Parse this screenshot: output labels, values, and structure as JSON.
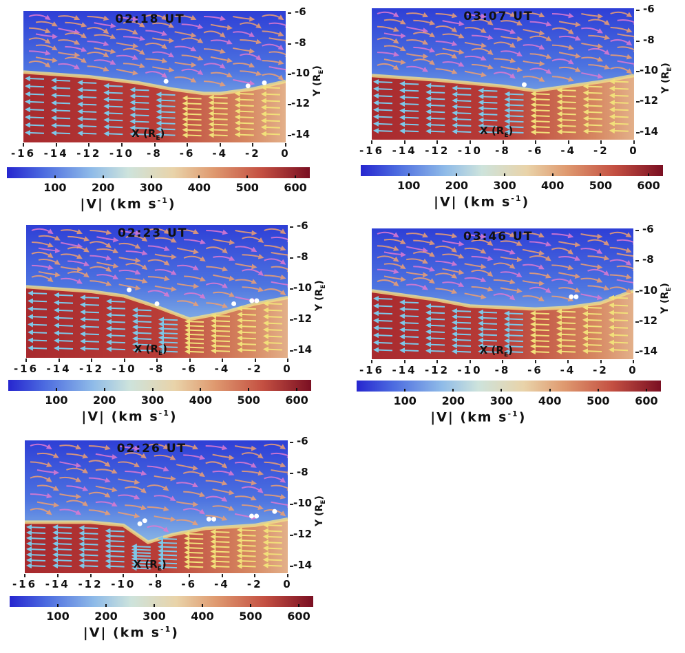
{
  "figure": {
    "x_axis_label": "X (R",
    "y_axis_label": "Y (R",
    "axis_unit_subscript": "E",
    "colorbar_label": "|V| (km s",
    "colorbar_label_exp": "-1",
    "colorbar_label_close": ")"
  },
  "chart_data": {
    "type": "heatmap",
    "description_kind": "velocity magnitude with streamlines",
    "xlim": [
      -16,
      0
    ],
    "ylim": [
      -14.5,
      -5.9
    ],
    "x_ticks": [
      "-16",
      "-14",
      "-12",
      "-10",
      "-8",
      "-6",
      "-4",
      "-2",
      "0"
    ],
    "x_tick_values": [
      -16,
      -14,
      -12,
      -10,
      -8,
      -6,
      -4,
      -2,
      0
    ],
    "y_ticks": [
      "-6",
      "-8",
      "-10",
      "-12",
      "-14"
    ],
    "y_tick_values": [
      -6,
      -8,
      -10,
      -12,
      -14
    ],
    "colorbar": {
      "range": [
        0,
        630
      ],
      "ticks": [
        "100",
        "200",
        "300",
        "400",
        "500",
        "600"
      ],
      "tick_values": [
        100,
        200,
        300,
        400,
        500,
        600
      ],
      "colors": [
        "#2626cf",
        "#8fbbe8",
        "#e9d3a9",
        "#c45042",
        "#7a0f22"
      ]
    },
    "panels": [
      {
        "title": "02:18 UT",
        "boundary": [
          [
            -16,
            -9.9
          ],
          [
            -12,
            -10.2
          ],
          [
            -9,
            -10.6
          ],
          [
            -7,
            -11.0
          ],
          [
            -5,
            -11.3
          ],
          [
            -4,
            -11.3
          ],
          [
            -2,
            -11.0
          ],
          [
            0,
            -10.5
          ]
        ],
        "spacecraft": [
          [
            -7.3,
            -10.5
          ],
          [
            -2.3,
            -10.8
          ],
          [
            -1.3,
            -10.6
          ]
        ]
      },
      {
        "title": "03:07 UT",
        "boundary": [
          [
            -16,
            -10.3
          ],
          [
            -12,
            -10.6
          ],
          [
            -8,
            -11.0
          ],
          [
            -6,
            -11.3
          ],
          [
            -4,
            -11.0
          ],
          [
            -2,
            -10.7
          ],
          [
            0,
            -10.3
          ]
        ],
        "spacecraft": [
          [
            -6.7,
            -10.9
          ]
        ]
      },
      {
        "title": "02:23 UT",
        "boundary": [
          [
            -16,
            -9.9
          ],
          [
            -12,
            -10.2
          ],
          [
            -10,
            -10.5
          ],
          [
            -8,
            -11.2
          ],
          [
            -6,
            -12.0
          ],
          [
            -4,
            -11.6
          ],
          [
            -2,
            -11.0
          ],
          [
            0,
            -10.6
          ]
        ],
        "spacecraft": [
          [
            -9.7,
            -10.1
          ],
          [
            -8.0,
            -11.0
          ],
          [
            -3.3,
            -11.0
          ],
          [
            -2.2,
            -10.8
          ],
          [
            -1.9,
            -10.8
          ]
        ]
      },
      {
        "title": "03:46 UT",
        "boundary": [
          [
            -16,
            -10.0
          ],
          [
            -12,
            -10.6
          ],
          [
            -10,
            -11.0
          ],
          [
            -6,
            -11.2
          ],
          [
            -4,
            -11.1
          ],
          [
            -2,
            -10.8
          ],
          [
            0,
            -10.0
          ]
        ],
        "spacecraft": [
          [
            -3.8,
            -10.4
          ],
          [
            -3.5,
            -10.4
          ]
        ]
      },
      {
        "title": "02:26 UT",
        "boundary": [
          [
            -16,
            -11.2
          ],
          [
            -12,
            -11.2
          ],
          [
            -10,
            -11.4
          ],
          [
            -8.5,
            -12.5
          ],
          [
            -7,
            -12.0
          ],
          [
            -5,
            -11.6
          ],
          [
            -2,
            -11.4
          ],
          [
            0,
            -11.0
          ]
        ],
        "spacecraft": [
          [
            -9.0,
            -11.3
          ],
          [
            -8.7,
            -11.1
          ],
          [
            -4.8,
            -11.0
          ],
          [
            -4.5,
            -11.0
          ],
          [
            -2.2,
            -10.8
          ],
          [
            -1.9,
            -10.8
          ],
          [
            -0.8,
            -10.5
          ]
        ]
      }
    ]
  }
}
